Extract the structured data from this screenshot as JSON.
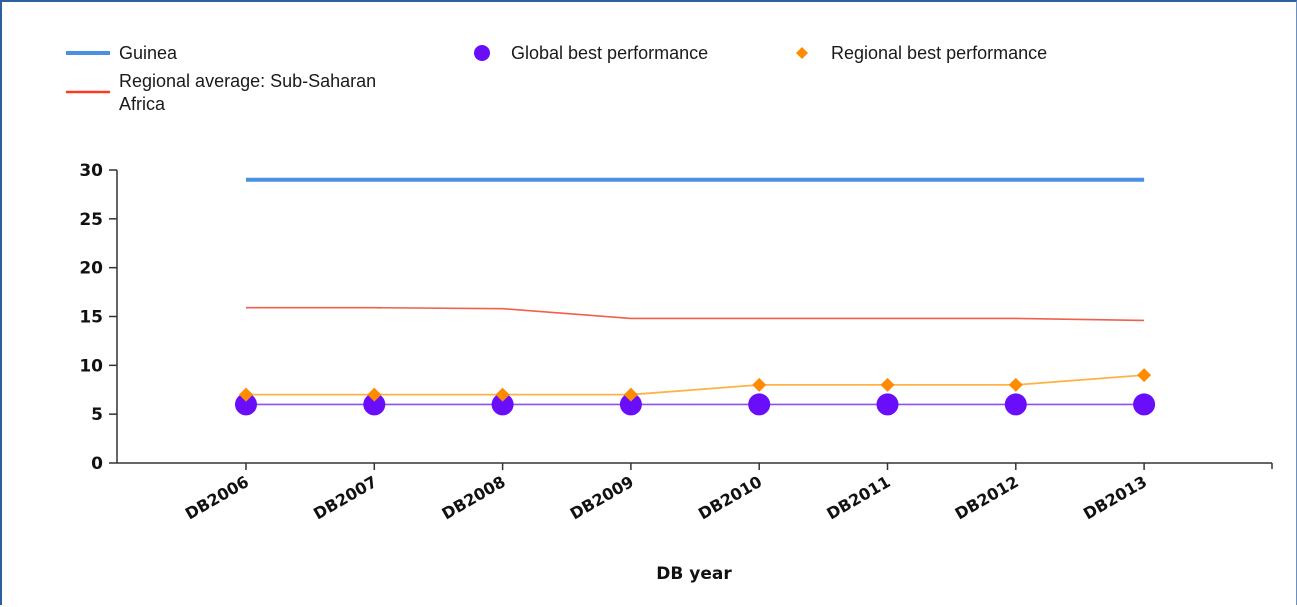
{
  "chart_data": {
    "type": "line",
    "xlabel": "DB year",
    "ylabel": "",
    "ylim": [
      0,
      30
    ],
    "yticks": [
      0,
      5,
      10,
      15,
      20,
      25,
      30
    ],
    "categories": [
      "DB2006",
      "DB2007",
      "DB2008",
      "DB2009",
      "DB2010",
      "DB2011",
      "DB2012",
      "DB2013"
    ],
    "legend_placement": "top-left",
    "series": [
      {
        "name": "Guinea",
        "color": "#4a90e2",
        "marker": "none",
        "values": [
          29,
          29,
          29,
          29,
          29,
          29,
          29,
          29
        ]
      },
      {
        "name": "Regional average: Sub-Saharan Africa",
        "color": "#ff3b1f",
        "marker": "none",
        "values": [
          15.9,
          15.9,
          15.8,
          14.8,
          14.8,
          14.8,
          14.8,
          14.6
        ]
      },
      {
        "name": "Global best performance",
        "color": "#6a0dfa",
        "marker": "circle",
        "values": [
          6,
          6,
          6,
          6,
          6,
          6,
          6,
          6
        ]
      },
      {
        "name": "Regional best performance",
        "color": "#ff8c00",
        "marker": "diamond",
        "values": [
          7,
          7,
          7,
          7,
          8,
          8,
          8,
          9
        ]
      }
    ]
  },
  "legend": {
    "items": [
      {
        "label_lines": [
          "Guinea"
        ]
      },
      {
        "label_lines": [
          "Regional average: Sub-Saharan",
          "Africa"
        ]
      },
      {
        "label_lines": [
          "Global best performance"
        ]
      },
      {
        "label_lines": [
          "Regional best performance"
        ]
      }
    ]
  }
}
